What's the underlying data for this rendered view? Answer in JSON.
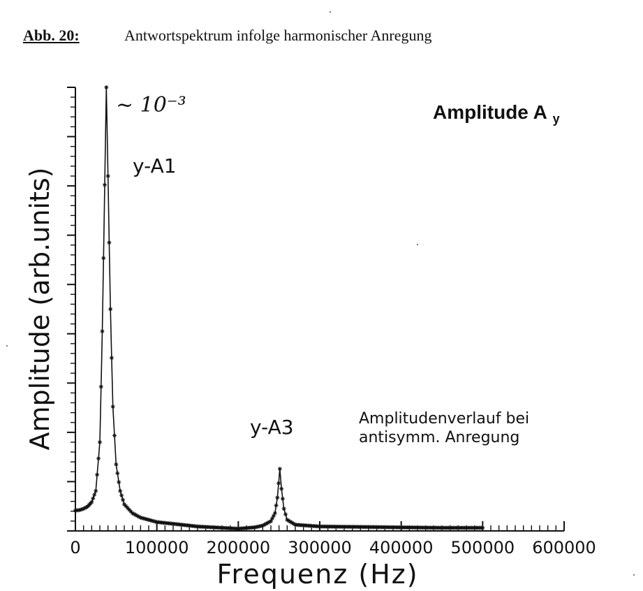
{
  "figure": {
    "label": "Abb. 20:",
    "caption": "Antwortspektrum infolge harmonischer Anregung"
  },
  "annotations": {
    "scale_note": "~ 10⁻³",
    "panel_title": "Amplitude A",
    "panel_title_sub": "y",
    "peak1_label": "y-A1",
    "peak3_label": "y-A3",
    "note_line1": "Amplitudenverlauf bei",
    "note_line2": "antisymm. Anregung"
  },
  "chart_data": {
    "type": "line",
    "title": "Amplitude Ay",
    "xlabel": "Frequenz (Hz)",
    "ylabel": "Amplitude (arb.units)",
    "xlim": [
      0,
      600000
    ],
    "ylim": [
      0,
      1.0
    ],
    "x_ticks": [
      0,
      100000,
      200000,
      300000,
      400000,
      500000,
      600000
    ],
    "x_tick_labels": [
      "0",
      "100000",
      "200000",
      "300000",
      "400000",
      "500000",
      "600000"
    ],
    "y_tick_labels_shown": false,
    "markers": "asterisk",
    "grid": false,
    "legend": "none",
    "series": [
      {
        "points": [
          [
            0,
            0.046
          ],
          [
            5000,
            0.047
          ],
          [
            10000,
            0.05
          ],
          [
            15000,
            0.055
          ],
          [
            20000,
            0.065
          ],
          [
            25000,
            0.09
          ],
          [
            30000,
            0.2
          ],
          [
            33000,
            0.45
          ],
          [
            36000,
            0.78
          ],
          [
            38000,
            1.0
          ],
          [
            40000,
            0.8
          ],
          [
            43000,
            0.5
          ],
          [
            46000,
            0.28
          ],
          [
            50000,
            0.15
          ],
          [
            55000,
            0.09
          ],
          [
            60000,
            0.06
          ],
          [
            70000,
            0.04
          ],
          [
            80000,
            0.03
          ],
          [
            100000,
            0.02
          ],
          [
            150000,
            0.01
          ],
          [
            200000,
            0.005
          ],
          [
            220000,
            0.008
          ],
          [
            230000,
            0.012
          ],
          [
            240000,
            0.022
          ],
          [
            245000,
            0.04
          ],
          [
            248000,
            0.075
          ],
          [
            251000,
            0.14
          ],
          [
            253000,
            0.095
          ],
          [
            256000,
            0.05
          ],
          [
            260000,
            0.025
          ],
          [
            270000,
            0.014
          ],
          [
            300000,
            0.01
          ],
          [
            350000,
            0.009
          ],
          [
            400000,
            0.008
          ],
          [
            450000,
            0.007
          ],
          [
            500000,
            0.007
          ]
        ]
      }
    ]
  }
}
